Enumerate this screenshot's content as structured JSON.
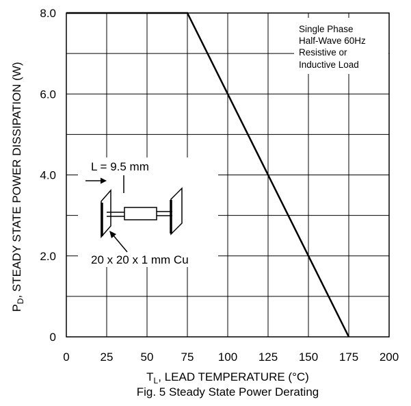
{
  "chart_data": {
    "type": "line",
    "title": "",
    "caption": "Fig. 5  Steady State Power Derating",
    "xlabel": {
      "main": "T",
      "sub": "L",
      "rest": ", LEAD TEMPERATURE (°C)"
    },
    "ylabel": {
      "main": "P",
      "sub": "D",
      "rest": ", STEADY STATE POWER DISSIPATION (W)"
    },
    "xlim": [
      0,
      200
    ],
    "ylim": [
      0,
      8
    ],
    "x_ticks": [
      0,
      25,
      50,
      75,
      100,
      125,
      150,
      175,
      200
    ],
    "x_tick_labels": [
      "0",
      "25",
      "50",
      "75",
      "100",
      "125",
      "150",
      "175",
      "200"
    ],
    "y_ticks": [
      0,
      2,
      4,
      6,
      8
    ],
    "y_tick_labels": [
      "0",
      "2.0",
      "4.0",
      "6.0",
      "8.0"
    ],
    "y_grid_step": 1,
    "grid": true,
    "series": [
      {
        "x": [
          0,
          75,
          175
        ],
        "y": [
          8,
          8,
          0
        ],
        "color": "#000000"
      }
    ],
    "annotations": {
      "conditions": [
        "Single Phase",
        "Half-Wave 60Hz",
        "Resistive or",
        "Inductive Load"
      ],
      "lead_length": "L = 9.5 mm",
      "heatsink": "20 x 20 x 1 mm Cu"
    }
  }
}
